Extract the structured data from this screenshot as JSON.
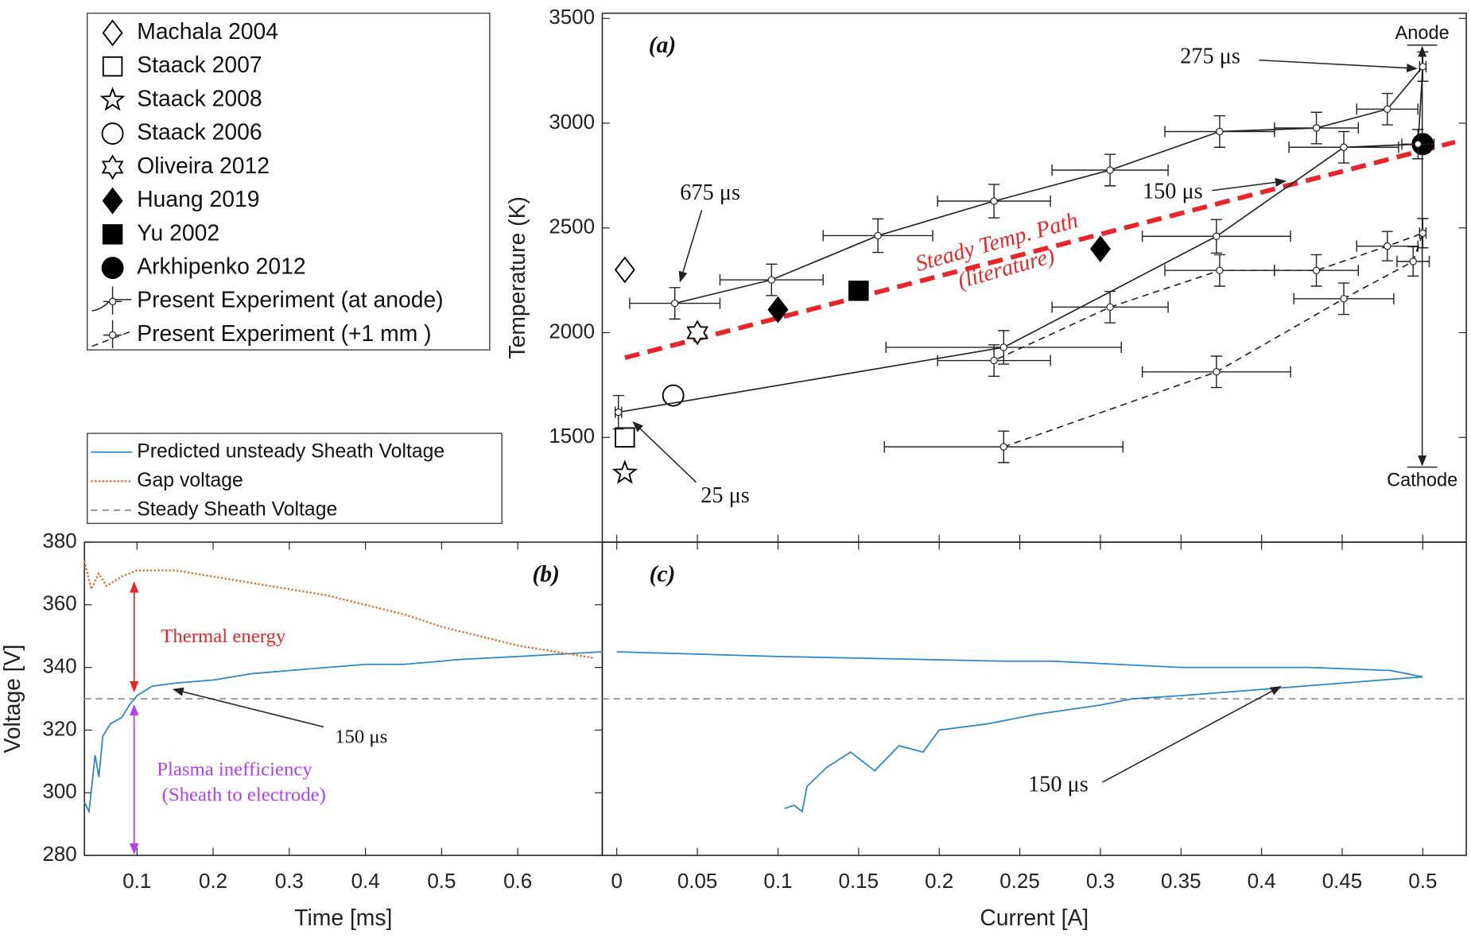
{
  "chart_data": [
    {
      "type": "scatter",
      "panel_label": "(a)",
      "ylabel": "Temperature (K)",
      "xlim": [
        -0.009,
        0.527
      ],
      "ylim": [
        1000,
        3525
      ],
      "yticks": [
        1500,
        2000,
        2500,
        3000,
        3500
      ],
      "series": [
        {
          "name": "Machala 2004",
          "marker": "diamond",
          "filled": false,
          "color": "#000000",
          "x": [
            0.005
          ],
          "values": [
            2300
          ]
        },
        {
          "name": "Staack 2007",
          "marker": "square",
          "filled": false,
          "color": "#000000",
          "x": [
            0.005
          ],
          "values": [
            1500
          ]
        },
        {
          "name": "Staack 2008",
          "marker": "star5",
          "filled": false,
          "color": "#000000",
          "x": [
            0.005
          ],
          "values": [
            1330
          ]
        },
        {
          "name": "Staack 2006",
          "marker": "circle",
          "filled": false,
          "color": "#000000",
          "x": [
            0.035
          ],
          "values": [
            1700
          ]
        },
        {
          "name": "Oliveira 2012",
          "marker": "star6",
          "filled": false,
          "color": "#000000",
          "x": [
            0.05
          ],
          "values": [
            2000
          ]
        },
        {
          "name": "Huang 2019",
          "marker": "diamond",
          "filled": true,
          "color": "#000000",
          "x": [
            0.1,
            0.3
          ],
          "values": [
            2110,
            2400
          ]
        },
        {
          "name": "Yu 2002",
          "marker": "square",
          "filled": true,
          "color": "#000000",
          "x": [
            0.15
          ],
          "values": [
            2200
          ]
        },
        {
          "name": "Arkhipenko 2012",
          "marker": "circle",
          "filled": true,
          "color": "#000000",
          "x": [
            0.5
          ],
          "values": [
            2900
          ]
        },
        {
          "name": "Present Experiment (at anode)",
          "marker": "dot",
          "filled": false,
          "color": "#222222",
          "line": "solid",
          "x": [
            0.001,
            0.24,
            0.372,
            0.451,
            0.497,
            0.5,
            0.478,
            0.434,
            0.374,
            0.306,
            0.234,
            0.162,
            0.096,
            0.036
          ],
          "values": [
            1620,
            1930,
            2460,
            2885,
            2900,
            3270,
            3067,
            2977,
            2960,
            2776,
            2628,
            2463,
            2252,
            2140
          ],
          "xerr": [
            0.002,
            0.073,
            0.046,
            0.034,
            0.01,
            0.002,
            0.019,
            0.026,
            0.034,
            0.036,
            0.035,
            0.034,
            0.032,
            0.028
          ],
          "yerr": [
            80,
            80,
            80,
            75,
            70,
            70,
            75,
            75,
            75,
            75,
            80,
            80,
            75,
            75
          ]
        },
        {
          "name": "Present Experiment (+1 mm )",
          "marker": "dot",
          "filled": false,
          "color": "#222222",
          "line": "dashed",
          "x": [
            0.24,
            0.372,
            0.451,
            0.494,
            0.5,
            0.478,
            0.434,
            0.374,
            0.306,
            0.234
          ],
          "values": [
            1455,
            1813,
            2162,
            2340,
            2475,
            2413,
            2297,
            2297,
            2122,
            1867
          ],
          "xerr": [
            0.074,
            0.046,
            0.031,
            0.01,
            0.002,
            0.019,
            0.026,
            0.034,
            0.036,
            0.035
          ],
          "yerr": [
            75,
            75,
            75,
            70,
            70,
            70,
            75,
            75,
            75,
            75
          ]
        }
      ],
      "steady_path": {
        "label": [
          "Steady Temp. Path",
          "(literature)"
        ],
        "x": [
          0.005,
          0.52
        ],
        "values": [
          1880,
          2910
        ],
        "color": "#e8262a"
      },
      "annotations": [
        "675 μs",
        "275 μs",
        "150 μs",
        "25 μs",
        "Anode",
        "Cathode"
      ]
    },
    {
      "type": "line",
      "panel_label": "(b)",
      "xlabel": "Time [ms]",
      "ylabel": "Voltage [V]",
      "xlim": [
        0.031,
        0.711
      ],
      "ylim": [
        280,
        380
      ],
      "xticks": [
        0.1,
        0.2,
        0.3,
        0.4,
        0.5,
        0.6
      ],
      "yticks": [
        280,
        300,
        320,
        340,
        360,
        380
      ],
      "series": [
        {
          "name": "Predicted unsteady Sheath Voltage",
          "color": "#2b87c8",
          "style": "solid",
          "x": [
            0.031,
            0.037,
            0.045,
            0.05,
            0.055,
            0.065,
            0.08,
            0.09,
            0.1,
            0.12,
            0.15,
            0.2,
            0.25,
            0.3,
            0.35,
            0.4,
            0.45,
            0.5,
            0.52,
            0.6,
            0.711
          ],
          "values": [
            297,
            294,
            312,
            305,
            318,
            322,
            324,
            328,
            331,
            334,
            335,
            336,
            338,
            339,
            340,
            341,
            341,
            342,
            342.5,
            343.5,
            345
          ]
        },
        {
          "name": "Gap voltage",
          "color": "#e07030",
          "style": "dotted",
          "x": [
            0.031,
            0.04,
            0.05,
            0.06,
            0.08,
            0.1,
            0.15,
            0.2,
            0.25,
            0.3,
            0.35,
            0.4,
            0.45,
            0.5,
            0.55,
            0.6,
            0.65,
            0.7
          ],
          "values": [
            374,
            365,
            370,
            366,
            369,
            371,
            371,
            369,
            367,
            365,
            363,
            360,
            357,
            353,
            350,
            347,
            345,
            343
          ]
        },
        {
          "name": "Steady Sheath Voltage",
          "color": "#888888",
          "style": "dashed",
          "y": 330
        }
      ],
      "annotations": [
        "Thermal energy",
        "Plasma inefficiency",
        "(Sheath to electrode)",
        "150 μs"
      ]
    },
    {
      "type": "line",
      "panel_label": "(c)",
      "xlabel": "Current [A]",
      "xlim": [
        -0.009,
        0.527
      ],
      "ylim": [
        280,
        380
      ],
      "xticks": [
        0,
        0.05,
        0.1,
        0.15,
        0.2,
        0.25,
        0.3,
        0.35,
        0.4,
        0.45,
        0.5
      ],
      "series": [
        {
          "color": "#2b87c8",
          "style": "solid",
          "x": [
            0.104,
            0.11,
            0.115,
            0.118,
            0.13,
            0.145,
            0.16,
            0.175,
            0.19,
            0.2,
            0.23,
            0.26,
            0.3,
            0.32,
            0.35,
            0.4,
            0.45,
            0.5,
            0.48,
            0.43,
            0.35,
            0.27,
            0.24,
            0.1,
            0
          ],
          "values": [
            295,
            296,
            294,
            302,
            308,
            313,
            307,
            315,
            313,
            320,
            322,
            325,
            328,
            330,
            331,
            333,
            335,
            337,
            339,
            340,
            340,
            342,
            342,
            343.5,
            345
          ]
        }
      ],
      "annotations": [
        "150 μs"
      ]
    }
  ]
}
